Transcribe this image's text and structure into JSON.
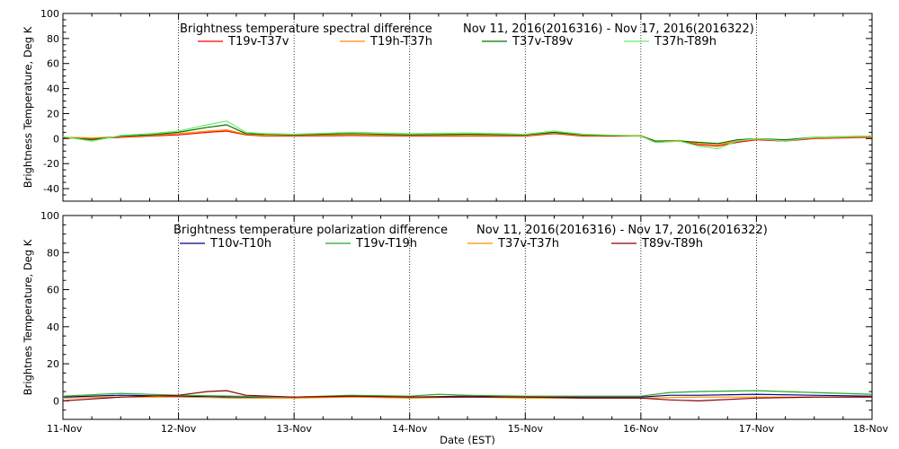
{
  "chart_data": [
    {
      "type": "line",
      "title": "Brightness temperature spectral difference",
      "date_range": "Nov 11, 2016(2016316) - Nov 17, 2016(2016322)",
      "ylabel": "Brightness Temperature, Deg K",
      "ylim": [
        -50,
        100
      ],
      "yticks": [
        -40,
        -20,
        0,
        20,
        40,
        60,
        80,
        100
      ],
      "xlim": [
        "2016-11-11",
        "2016-11-18"
      ],
      "grid": "vertical dotted lines at each day",
      "legend_position": "top",
      "series": [
        {
          "name": "T19v-T37v",
          "color": "#ff0000",
          "points": [
            [
              "2016-11-11T00:00",
              0.5
            ],
            [
              "2016-11-11T06:00",
              0
            ],
            [
              "2016-11-11T12:00",
              1
            ],
            [
              "2016-11-11T18:00",
              2
            ],
            [
              "2016-11-12T00:00",
              3
            ],
            [
              "2016-11-12T06:00",
              5
            ],
            [
              "2016-11-12T10:00",
              6
            ],
            [
              "2016-11-12T14:00",
              3
            ],
            [
              "2016-11-12T18:00",
              2
            ],
            [
              "2016-11-13T00:00",
              2
            ],
            [
              "2016-11-13T12:00",
              2.5
            ],
            [
              "2016-11-14T00:00",
              2
            ],
            [
              "2016-11-14T12:00",
              2
            ],
            [
              "2016-11-15T00:00",
              2
            ],
            [
              "2016-11-15T06:00",
              4
            ],
            [
              "2016-11-15T12:00",
              2
            ],
            [
              "2016-11-16T00:00",
              2
            ],
            [
              "2016-11-16T03:00",
              -3
            ],
            [
              "2016-11-16T08:00",
              -2
            ],
            [
              "2016-11-16T12:00",
              -5
            ],
            [
              "2016-11-16T16:00",
              -6
            ],
            [
              "2016-11-16T20:00",
              -3
            ],
            [
              "2016-11-17T00:00",
              -1
            ],
            [
              "2016-11-17T06:00",
              -2
            ],
            [
              "2016-11-17T12:00",
              0
            ],
            [
              "2016-11-18T00:00",
              1
            ]
          ]
        },
        {
          "name": "T19h-T37h",
          "color": "#ff8c00",
          "points": [
            [
              "2016-11-11T00:00",
              1
            ],
            [
              "2016-11-11T06:00",
              0.5
            ],
            [
              "2016-11-11T12:00",
              1.5
            ],
            [
              "2016-11-11T18:00",
              2.5
            ],
            [
              "2016-11-12T00:00",
              4
            ],
            [
              "2016-11-12T06:00",
              6
            ],
            [
              "2016-11-12T10:00",
              7
            ],
            [
              "2016-11-12T14:00",
              3.5
            ],
            [
              "2016-11-12T18:00",
              2.5
            ],
            [
              "2016-11-13T00:00",
              2.5
            ],
            [
              "2016-11-13T12:00",
              3
            ],
            [
              "2016-11-14T00:00",
              2.5
            ],
            [
              "2016-11-14T12:00",
              2.5
            ],
            [
              "2016-11-15T00:00",
              2.5
            ],
            [
              "2016-11-15T06:00",
              4.5
            ],
            [
              "2016-11-15T12:00",
              2.5
            ],
            [
              "2016-11-16T00:00",
              2.5
            ],
            [
              "2016-11-16T03:00",
              -2
            ],
            [
              "2016-11-16T08:00",
              -1.5
            ],
            [
              "2016-11-16T12:00",
              -4
            ],
            [
              "2016-11-16T16:00",
              -5
            ],
            [
              "2016-11-16T20:00",
              -2
            ],
            [
              "2016-11-17T00:00",
              -0.5
            ],
            [
              "2016-11-17T06:00",
              -1
            ],
            [
              "2016-11-17T12:00",
              0.5
            ],
            [
              "2016-11-18T00:00",
              1.5
            ]
          ]
        },
        {
          "name": "T37v-T89v",
          "color": "#007000",
          "points": [
            [
              "2016-11-11T00:00",
              1
            ],
            [
              "2016-11-11T06:00",
              -1
            ],
            [
              "2016-11-11T12:00",
              2
            ],
            [
              "2016-11-11T18:00",
              3
            ],
            [
              "2016-11-12T00:00",
              5
            ],
            [
              "2016-11-12T06:00",
              9
            ],
            [
              "2016-11-12T10:00",
              11
            ],
            [
              "2016-11-12T14:00",
              4
            ],
            [
              "2016-11-12T18:00",
              3.5
            ],
            [
              "2016-11-13T00:00",
              3
            ],
            [
              "2016-11-13T12:00",
              4
            ],
            [
              "2016-11-14T00:00",
              3
            ],
            [
              "2016-11-14T12:00",
              3.5
            ],
            [
              "2016-11-15T00:00",
              3
            ],
            [
              "2016-11-15T06:00",
              5
            ],
            [
              "2016-11-15T12:00",
              3
            ],
            [
              "2016-11-16T00:00",
              2
            ],
            [
              "2016-11-16T03:00",
              -2
            ],
            [
              "2016-11-16T08:00",
              -2
            ],
            [
              "2016-11-16T12:00",
              -3
            ],
            [
              "2016-11-16T16:00",
              -4
            ],
            [
              "2016-11-16T20:00",
              -1
            ],
            [
              "2016-11-17T00:00",
              0
            ],
            [
              "2016-11-17T06:00",
              -1
            ],
            [
              "2016-11-17T12:00",
              1
            ],
            [
              "2016-11-18T00:00",
              2
            ]
          ]
        },
        {
          "name": "T37h-T89h",
          "color": "#66ee66",
          "points": [
            [
              "2016-11-11T00:00",
              1.5
            ],
            [
              "2016-11-11T06:00",
              -2
            ],
            [
              "2016-11-11T12:00",
              2.5
            ],
            [
              "2016-11-11T18:00",
              4
            ],
            [
              "2016-11-12T00:00",
              6
            ],
            [
              "2016-11-12T06:00",
              11
            ],
            [
              "2016-11-12T10:00",
              14
            ],
            [
              "2016-11-12T14:00",
              5
            ],
            [
              "2016-11-12T18:00",
              4
            ],
            [
              "2016-11-13T00:00",
              3.5
            ],
            [
              "2016-11-13T12:00",
              5
            ],
            [
              "2016-11-14T00:00",
              4
            ],
            [
              "2016-11-14T12:00",
              4.5
            ],
            [
              "2016-11-15T00:00",
              3.5
            ],
            [
              "2016-11-15T06:00",
              6
            ],
            [
              "2016-11-15T12:00",
              3.5
            ],
            [
              "2016-11-16T00:00",
              2
            ],
            [
              "2016-11-16T03:00",
              -3
            ],
            [
              "2016-11-16T08:00",
              -2
            ],
            [
              "2016-11-16T12:00",
              -6
            ],
            [
              "2016-11-16T16:00",
              -8
            ],
            [
              "2016-11-16T20:00",
              -2
            ],
            [
              "2016-11-17T00:00",
              0
            ],
            [
              "2016-11-17T06:00",
              -2
            ],
            [
              "2016-11-17T12:00",
              1
            ],
            [
              "2016-11-18T00:00",
              2
            ]
          ]
        }
      ]
    },
    {
      "type": "line",
      "title": "Brightness temperature polarization difference",
      "date_range": "Nov 11, 2016(2016316) - Nov 17, 2016(2016322)",
      "ylabel": "Brightnes Temperature, Deg K",
      "xlabel": "Date (EST)",
      "ylim": [
        -10,
        100
      ],
      "yticks": [
        0,
        20,
        40,
        60,
        80,
        100
      ],
      "xlim": [
        "2016-11-11",
        "2016-11-18"
      ],
      "xtick_labels": [
        "11-Nov",
        "12-Nov",
        "13-Nov",
        "14-Nov",
        "15-Nov",
        "16-Nov",
        "17-Nov",
        "18-Nov"
      ],
      "grid": "vertical dotted lines at each day",
      "legend_position": "top",
      "series": [
        {
          "name": "T10v-T10h",
          "color": "#00008b",
          "points": [
            [
              "2016-11-11T00:00",
              2
            ],
            [
              "2016-11-11T12:00",
              3
            ],
            [
              "2016-11-12T00:00",
              2.5
            ],
            [
              "2016-11-12T12:00",
              2
            ],
            [
              "2016-11-13T00:00",
              2
            ],
            [
              "2016-11-13T12:00",
              2.5
            ],
            [
              "2016-11-14T00:00",
              2
            ],
            [
              "2016-11-14T12:00",
              2.5
            ],
            [
              "2016-11-15T00:00",
              2
            ],
            [
              "2016-11-15T12:00",
              2
            ],
            [
              "2016-11-16T00:00",
              2
            ],
            [
              "2016-11-16T06:00",
              3
            ],
            [
              "2016-11-16T12:00",
              3
            ],
            [
              "2016-11-17T00:00",
              3.5
            ],
            [
              "2016-11-17T12:00",
              3
            ],
            [
              "2016-11-18T00:00",
              2.5
            ]
          ]
        },
        {
          "name": "T19v-T19h",
          "color": "#22aa22",
          "points": [
            [
              "2016-11-11T00:00",
              2.5
            ],
            [
              "2016-11-11T12:00",
              4
            ],
            [
              "2016-11-12T00:00",
              3
            ],
            [
              "2016-11-12T12:00",
              2.5
            ],
            [
              "2016-11-13T00:00",
              2
            ],
            [
              "2016-11-13T12:00",
              3
            ],
            [
              "2016-11-14T00:00",
              2.5
            ],
            [
              "2016-11-14T06:00",
              3.5
            ],
            [
              "2016-11-14T12:00",
              3
            ],
            [
              "2016-11-15T00:00",
              2.5
            ],
            [
              "2016-11-15T12:00",
              2.5
            ],
            [
              "2016-11-16T00:00",
              2.5
            ],
            [
              "2016-11-16T06:00",
              4.5
            ],
            [
              "2016-11-16T12:00",
              5
            ],
            [
              "2016-11-17T00:00",
              5.5
            ],
            [
              "2016-11-17T12:00",
              4.5
            ],
            [
              "2016-11-18T00:00",
              3.5
            ]
          ]
        },
        {
          "name": "T37v-T37h",
          "color": "#ff8c00",
          "points": [
            [
              "2016-11-11T00:00",
              1.5
            ],
            [
              "2016-11-11T12:00",
              2
            ],
            [
              "2016-11-12T00:00",
              2
            ],
            [
              "2016-11-12T12:00",
              1.5
            ],
            [
              "2016-11-13T00:00",
              1.5
            ],
            [
              "2016-11-13T12:00",
              2
            ],
            [
              "2016-11-14T00:00",
              1.5
            ],
            [
              "2016-11-14T12:00",
              2
            ],
            [
              "2016-11-15T00:00",
              1.5
            ],
            [
              "2016-11-15T12:00",
              1.5
            ],
            [
              "2016-11-16T00:00",
              1.5
            ],
            [
              "2016-11-16T12:00",
              2
            ],
            [
              "2016-11-17T00:00",
              2
            ],
            [
              "2016-11-17T12:00",
              2
            ],
            [
              "2016-11-18T00:00",
              2
            ]
          ]
        },
        {
          "name": "T89v-T89h",
          "color": "#8b0000",
          "points": [
            [
              "2016-11-11T00:00",
              0
            ],
            [
              "2016-11-11T06:00",
              1
            ],
            [
              "2016-11-11T12:00",
              2
            ],
            [
              "2016-11-12T00:00",
              3
            ],
            [
              "2016-11-12T06:00",
              5
            ],
            [
              "2016-11-12T10:00",
              5.5
            ],
            [
              "2016-11-12T14:00",
              3
            ],
            [
              "2016-11-13T00:00",
              2
            ],
            [
              "2016-11-13T12:00",
              2.5
            ],
            [
              "2016-11-14T00:00",
              2
            ],
            [
              "2016-11-14T12:00",
              2
            ],
            [
              "2016-11-15T00:00",
              2
            ],
            [
              "2016-11-15T12:00",
              1.5
            ],
            [
              "2016-11-16T00:00",
              1.5
            ],
            [
              "2016-11-16T06:00",
              0.5
            ],
            [
              "2016-11-16T12:00",
              0
            ],
            [
              "2016-11-17T00:00",
              1.5
            ],
            [
              "2016-11-17T12:00",
              2
            ],
            [
              "2016-11-18T00:00",
              2
            ]
          ]
        }
      ]
    }
  ]
}
